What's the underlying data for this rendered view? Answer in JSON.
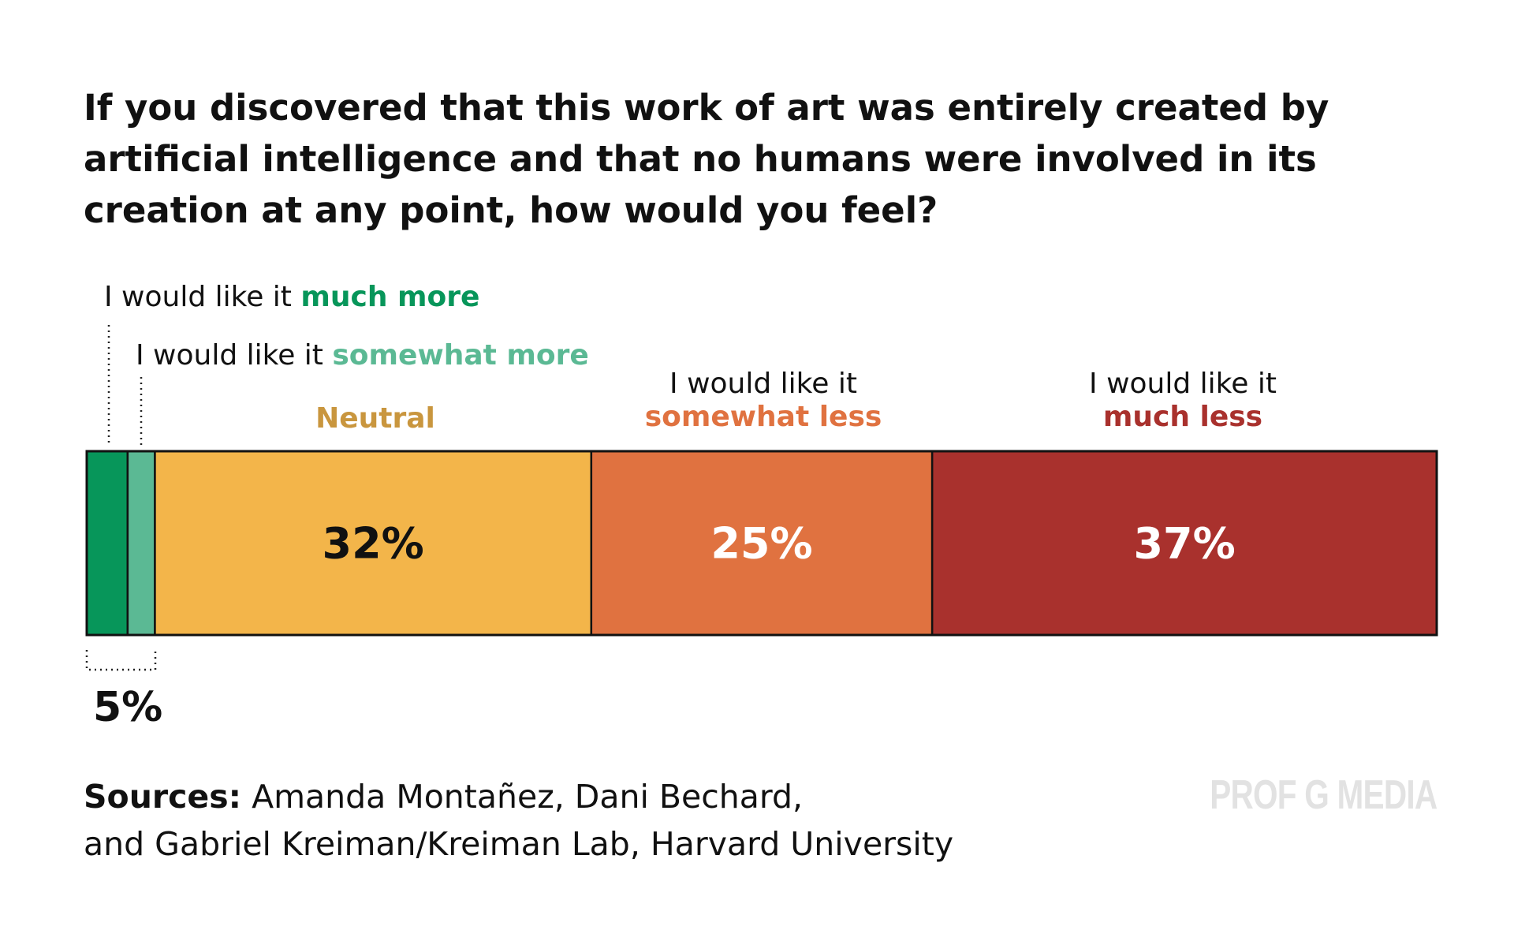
{
  "question": "If you discovered that this work of art was entirely created by artificial intelligence and that no humans were involved in its creation at any point, how would you feel?",
  "chart_data": {
    "type": "bar",
    "orientation": "horizontal-stacked",
    "title": "If you discovered that this work of art was entirely created by artificial intelligence and that no humans were involved in its creation at any point, how would you feel?",
    "categories": [
      "I would like it much more",
      "I would like it somewhat more",
      "Neutral",
      "I would like it somewhat less",
      "I would like it much less"
    ],
    "values": [
      3,
      2,
      32,
      25,
      37
    ],
    "colors": [
      "#07965a",
      "#5bb994",
      "#f3b54a",
      "#e07240",
      "#a9312d"
    ],
    "segment_labels": [
      "",
      "",
      "32%",
      "25%",
      "37%"
    ],
    "combined_label": "5%",
    "combined_note": "much more + somewhat more",
    "labels": {
      "prefix": "I would like it",
      "much_more": "much more",
      "somewhat_more": "somewhat more",
      "neutral": "Neutral",
      "somewhat_less": "somewhat less",
      "much_less": "much less"
    },
    "label_colors": {
      "much_more": "#07965a",
      "somewhat_more": "#5bb994",
      "neutral": "#c9963e",
      "somewhat_less": "#e07240",
      "much_less": "#a9312d"
    },
    "value_text_colors": [
      "#111111",
      "#111111",
      "#111111",
      "#ffffff",
      "#ffffff"
    ],
    "xlim": [
      0,
      99
    ]
  },
  "sources": {
    "label": "Sources:",
    "line1": "Amanda Montañez, Dani Bechard,",
    "line2": "and Gabriel Kreiman/Kreiman Lab, Harvard University"
  },
  "watermark": "PROF G MEDIA"
}
